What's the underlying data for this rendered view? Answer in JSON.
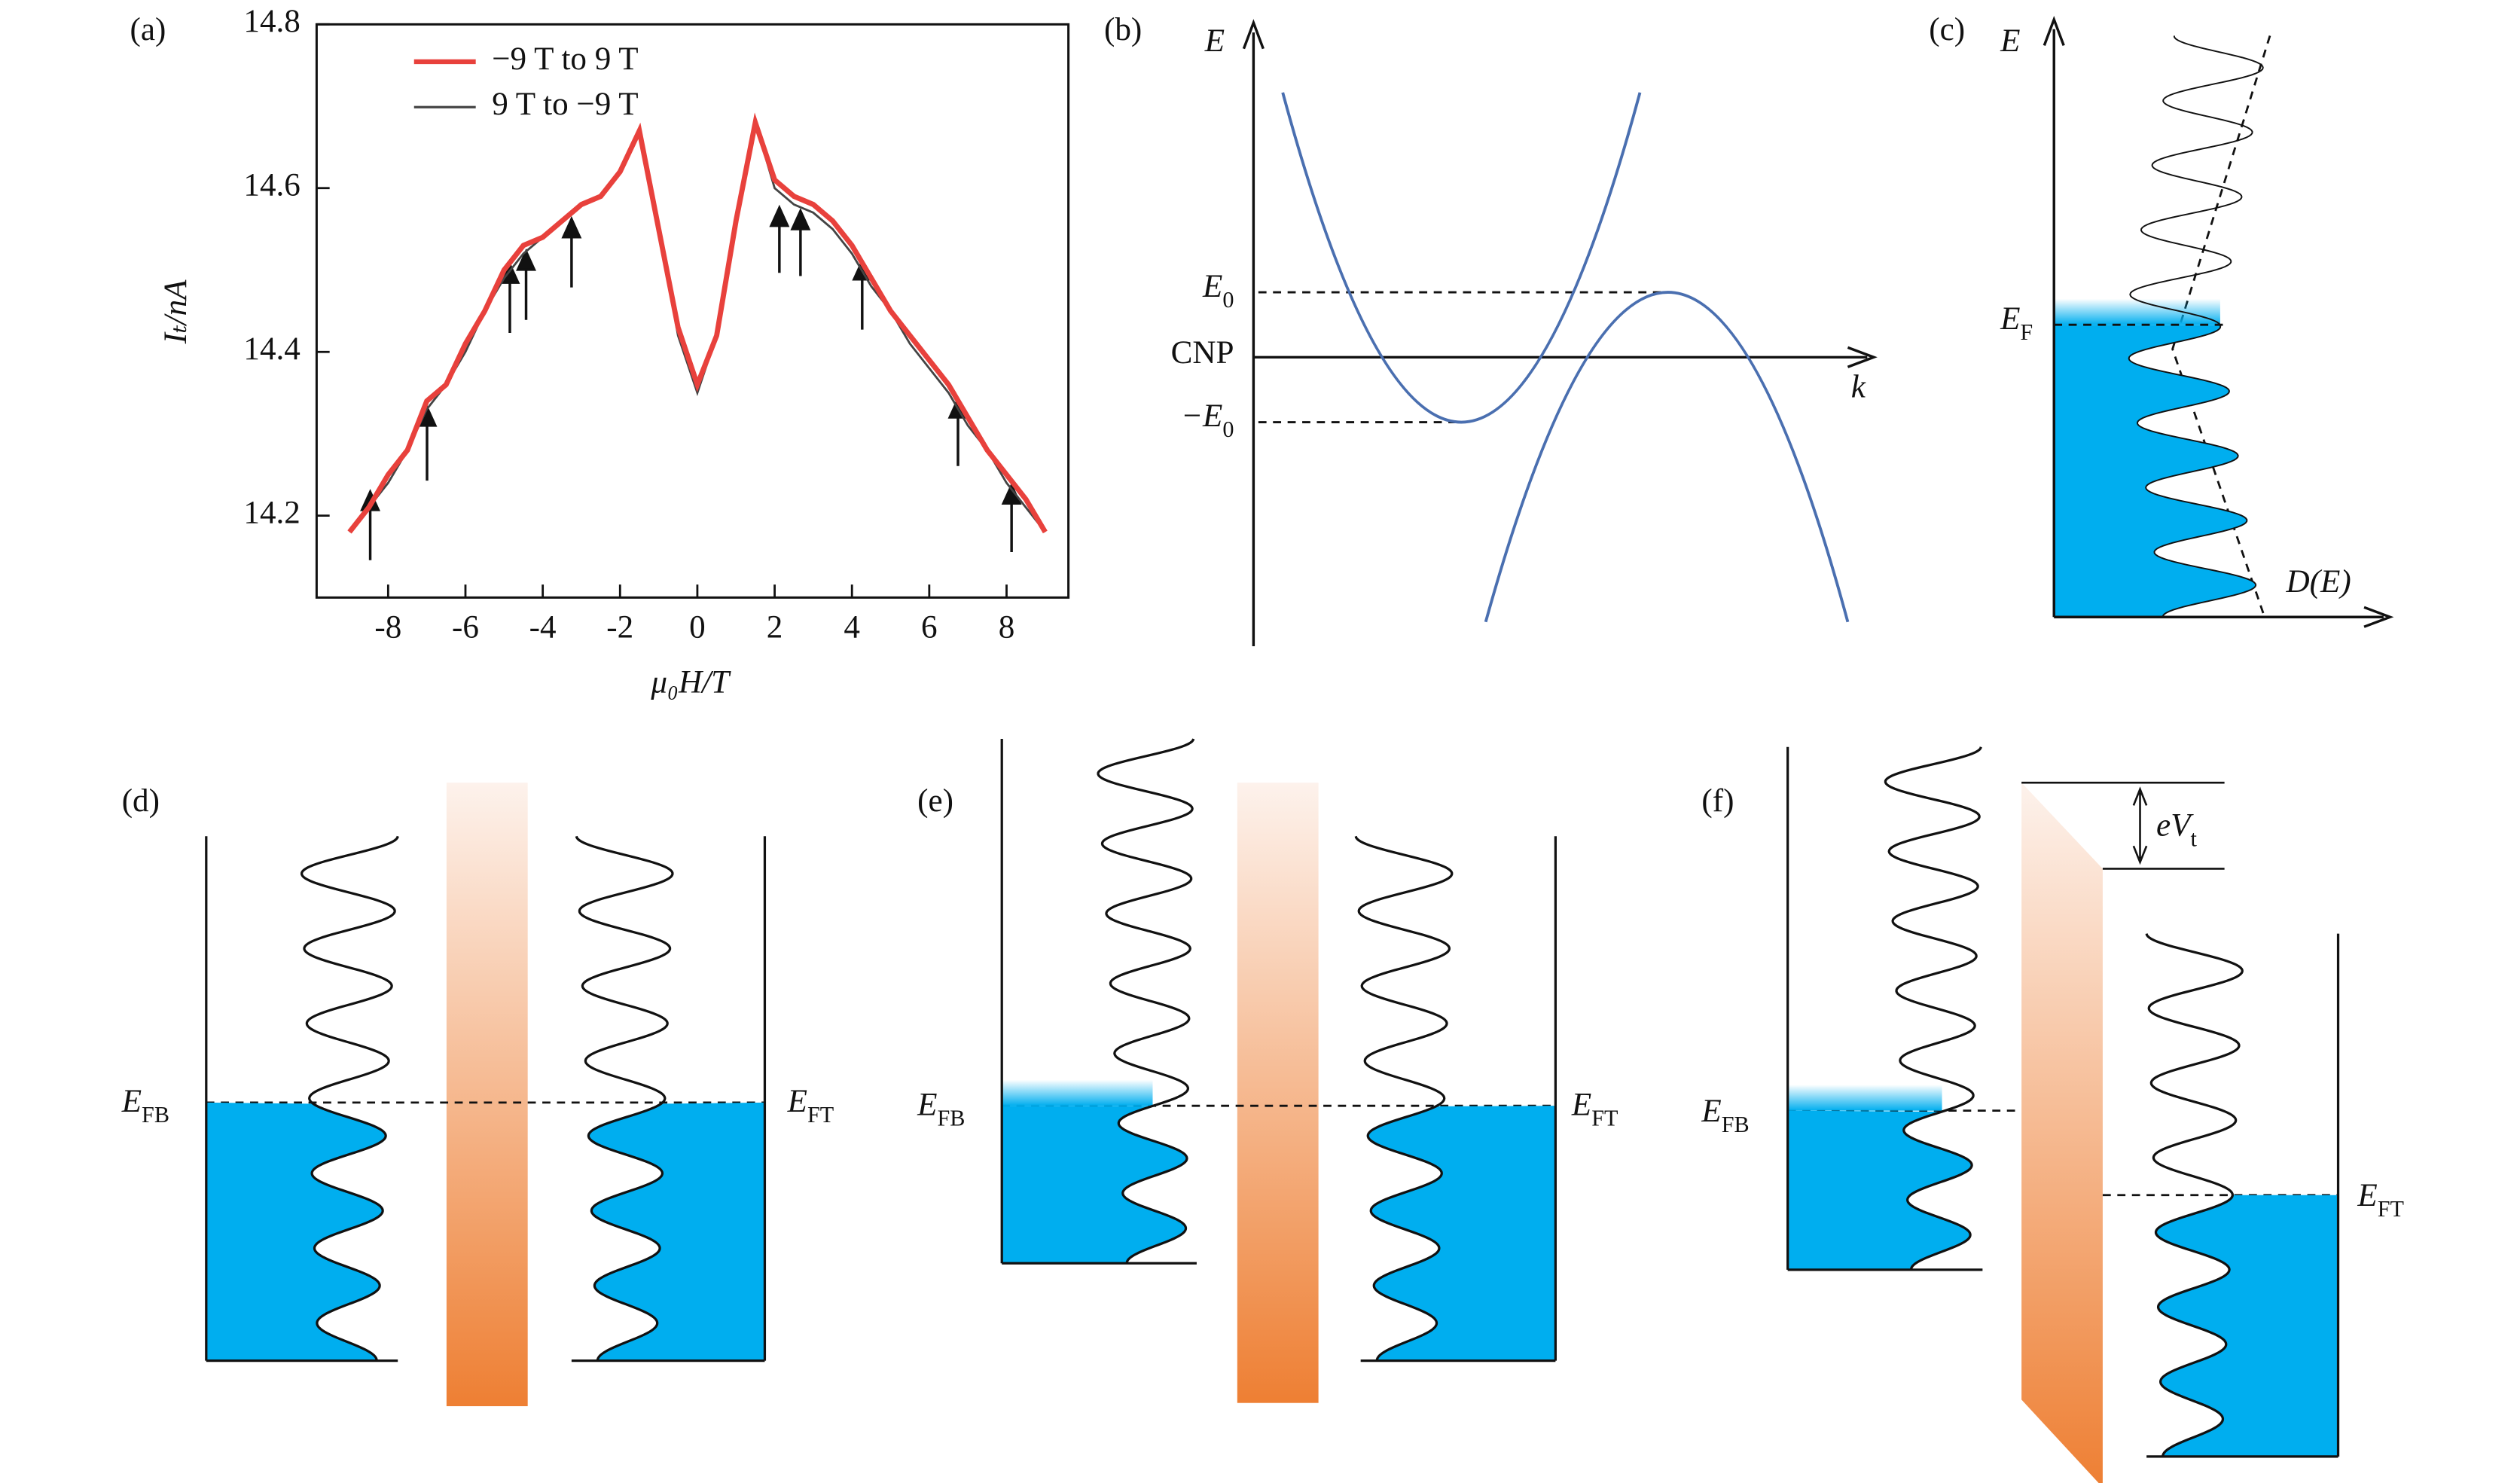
{
  "chart_data": {
    "type": "line",
    "panel_label": "(a)",
    "x_label": "μ₀H/T",
    "y_label": "Iₜ/nA",
    "x": [
      -9,
      -8.5,
      -8,
      -7.5,
      -7,
      -6.5,
      -6,
      -5.5,
      -5,
      -4.5,
      -4,
      -3.5,
      -3,
      -2.5,
      -2,
      -1.5,
      -1,
      -0.5,
      0,
      0.5,
      1,
      1.5,
      2,
      2.5,
      3,
      3.5,
      4,
      4.5,
      5,
      5.5,
      6,
      6.5,
      7,
      7.5,
      8,
      8.5,
      9
    ],
    "series": [
      {
        "name": "−9 T to 9 T",
        "color": "#e8413c",
        "values": [
          14.18,
          14.21,
          14.25,
          14.28,
          14.34,
          14.36,
          14.41,
          14.45,
          14.5,
          14.53,
          14.54,
          14.56,
          14.58,
          14.59,
          14.62,
          14.67,
          14.55,
          14.43,
          14.36,
          14.42,
          14.56,
          14.68,
          14.61,
          14.59,
          14.58,
          14.56,
          14.53,
          14.49,
          14.45,
          14.42,
          14.39,
          14.36,
          14.32,
          14.28,
          14.25,
          14.22,
          14.18
        ]
      },
      {
        "name": "9 T to −9 T",
        "color": "#444444",
        "values": [
          14.18,
          14.21,
          14.24,
          14.28,
          14.33,
          14.36,
          14.4,
          14.45,
          14.49,
          14.52,
          14.54,
          14.56,
          14.58,
          14.59,
          14.62,
          14.67,
          14.55,
          14.42,
          14.35,
          14.42,
          14.56,
          14.68,
          14.6,
          14.58,
          14.57,
          14.55,
          14.52,
          14.48,
          14.45,
          14.41,
          14.38,
          14.35,
          14.31,
          14.28,
          14.24,
          14.21,
          14.18
        ]
      }
    ],
    "xlim": [
      -9.85,
      9.6
    ],
    "ylim": [
      14.1,
      14.8
    ],
    "xticks": [
      -8,
      -6,
      -4,
      -2,
      0,
      2,
      4,
      6,
      8
    ],
    "yticks": [
      14.2,
      14.4,
      14.6,
      14.8
    ],
    "legend": "upper left"
  },
  "panels": {
    "b": {
      "label": "(b)",
      "y_axis": "E",
      "e0": {
        "base": "E",
        "sub": "0"
      },
      "cnp": "CNP",
      "neg_e0": {
        "base": "−E",
        "sub": "0"
      },
      "x_axis": "k"
    },
    "c": {
      "label": "(c)",
      "y_axis": "E",
      "ef": {
        "base": "E",
        "sub": "F"
      },
      "x_axis": "D(E)"
    },
    "d": {
      "label": "(d)",
      "efb": {
        "base": "E",
        "sub": "FB"
      },
      "eft": {
        "base": "E",
        "sub": "FT"
      }
    },
    "e": {
      "label": "(e)",
      "efb": {
        "base": "E",
        "sub": "FB"
      },
      "eft": {
        "base": "E",
        "sub": "FT"
      }
    },
    "f": {
      "label": "(f)",
      "efb": {
        "base": "E",
        "sub": "FB"
      },
      "eft": {
        "base": "E",
        "sub": "FT"
      },
      "evt": {
        "base": "eV",
        "sub": "t"
      }
    }
  }
}
